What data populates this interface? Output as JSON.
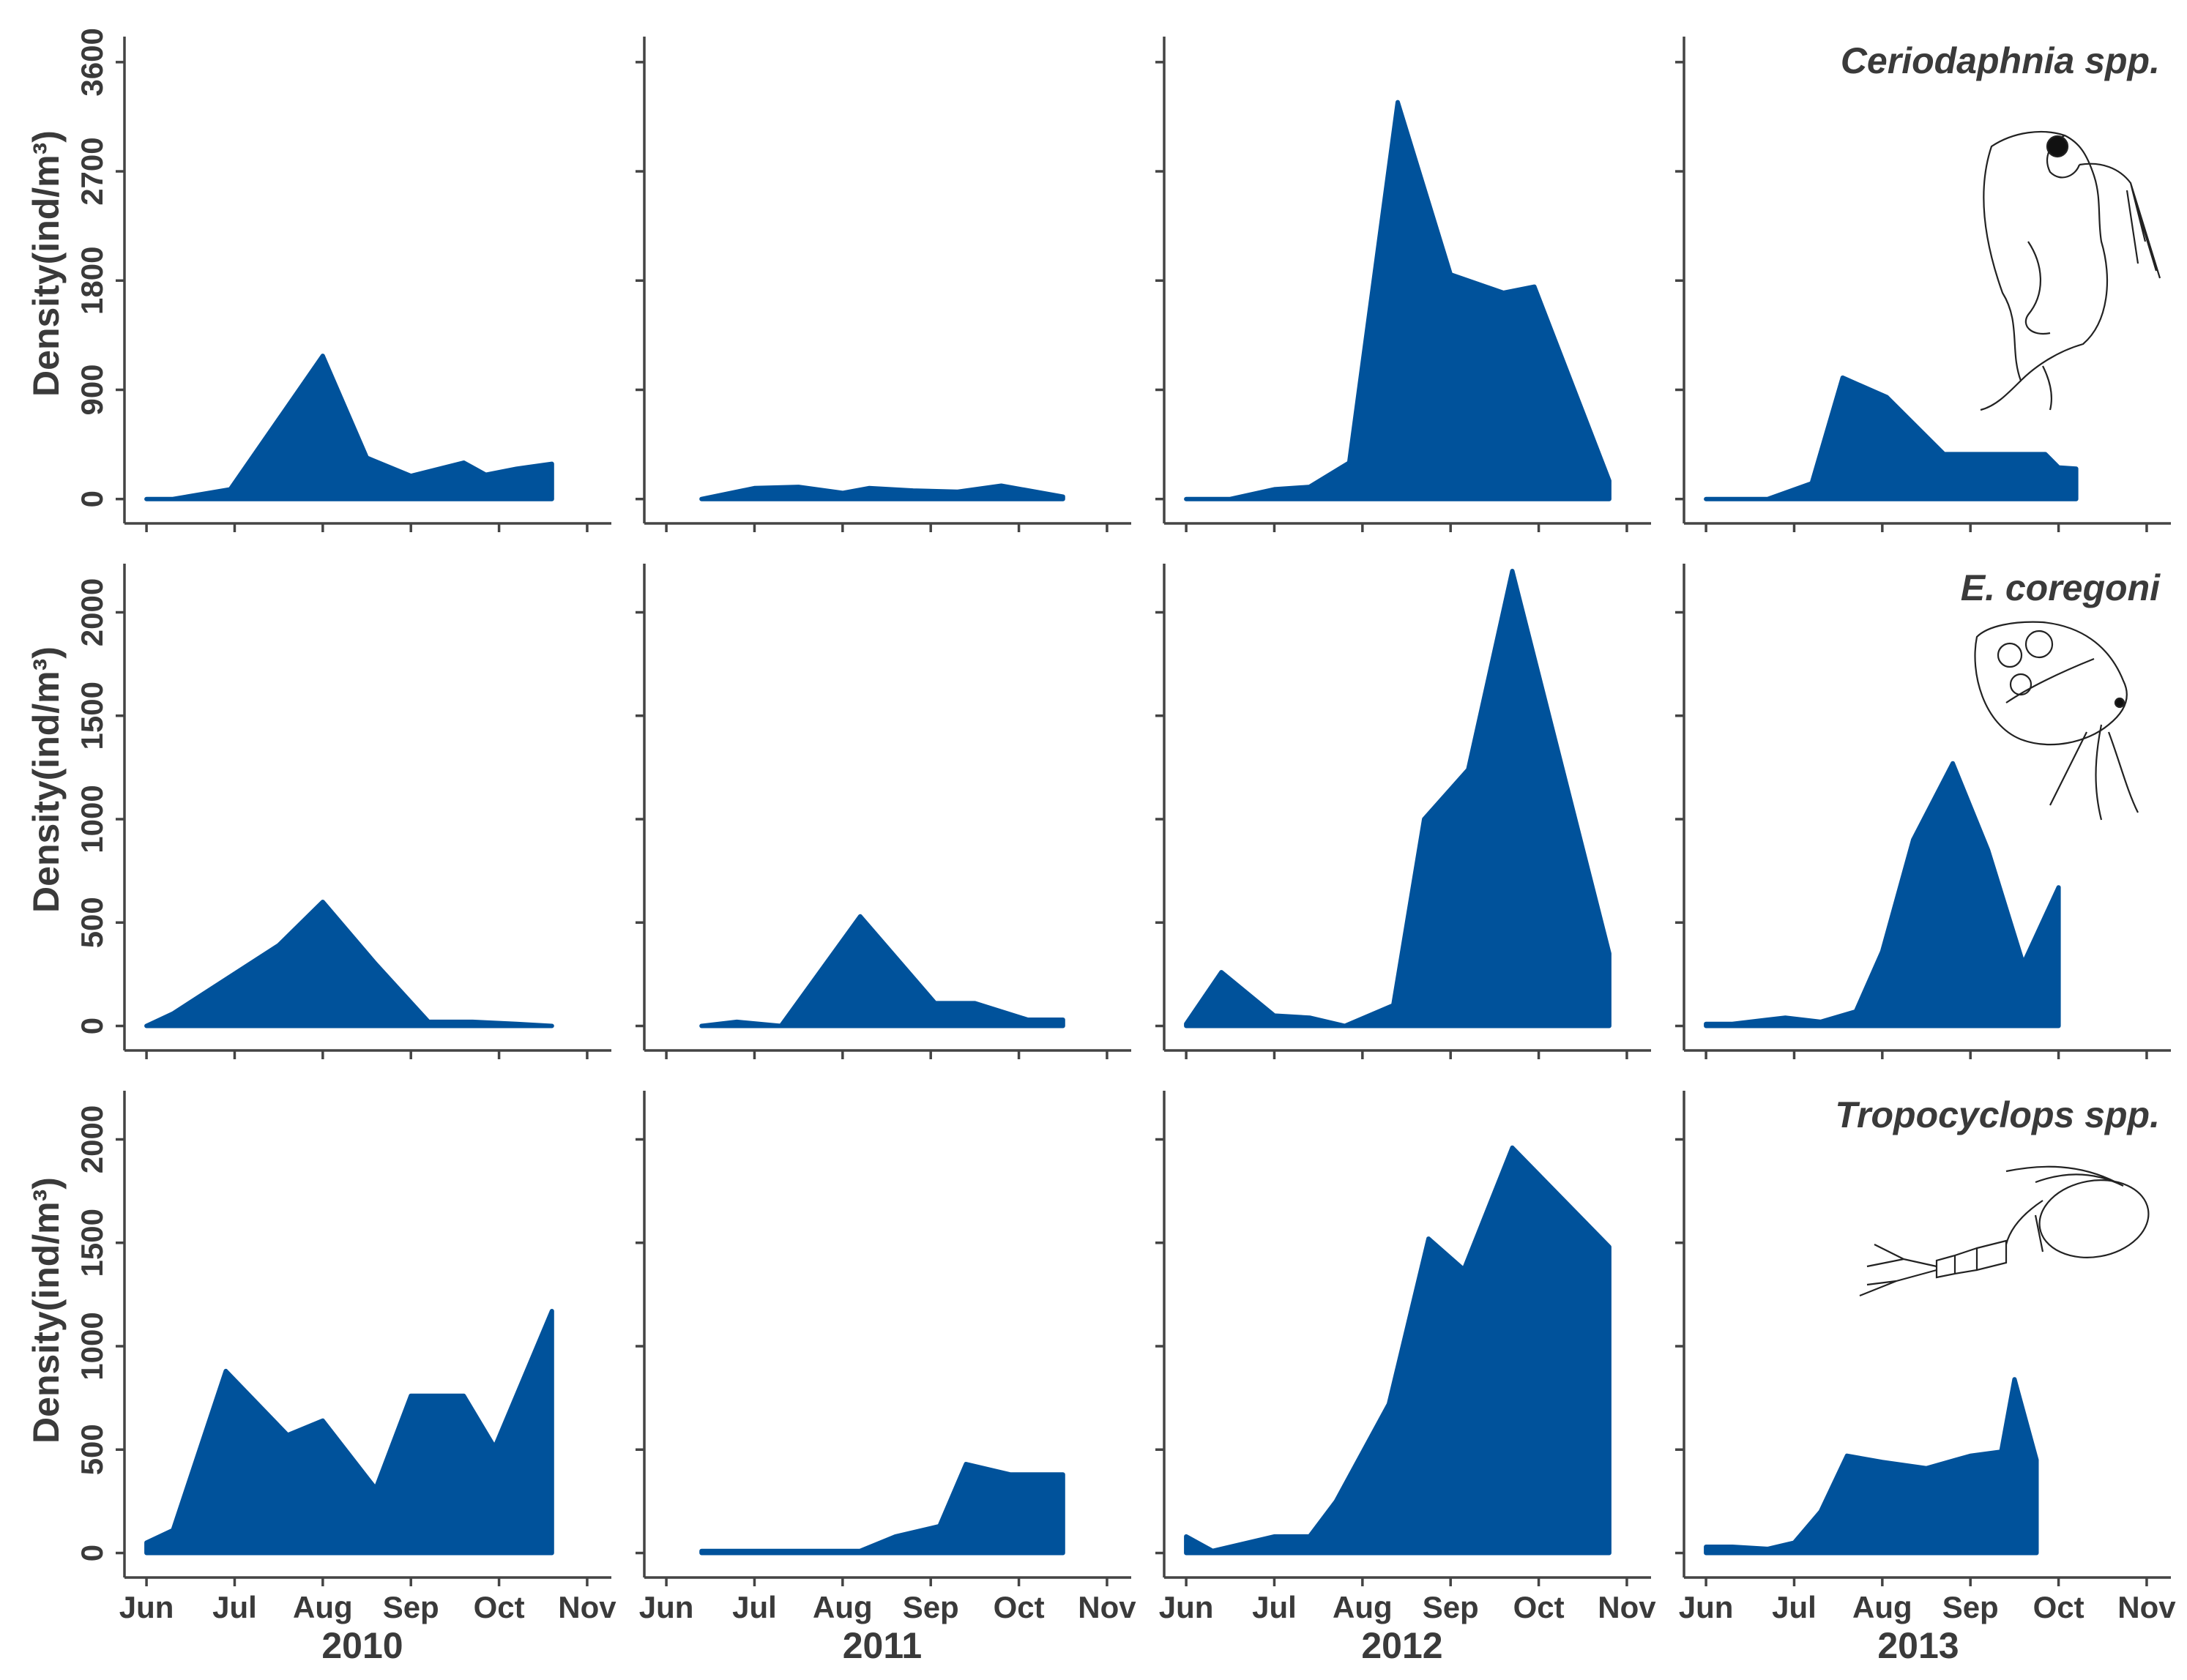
{
  "chart_data": {
    "type": "area",
    "fill_color": "#00529b",
    "years": [
      "2010",
      "2011",
      "2012",
      "2013"
    ],
    "month_labels": [
      "Jun",
      "Jul",
      "Aug",
      "Sep",
      "Oct",
      "Nov"
    ],
    "ylabel": "Density(ind/m³)",
    "rows": [
      {
        "species": "Ceriodaphnia spp.",
        "ylim": [
          -50,
          3750
        ],
        "yticks": [
          "0",
          "900",
          "1800",
          "2700",
          "3600"
        ],
        "ytick_values": [
          0,
          900,
          1800,
          2700,
          3600
        ],
        "series": [
          {
            "year": "2010",
            "x": [
              5,
              5.3,
              5.95,
              7.0,
              7.5,
              8.0,
              8.6,
              8.85,
              9.2,
              9.6
            ],
            "y": [
              0,
              0,
              80,
              1180,
              340,
              190,
              300,
              200,
              250,
              290
            ]
          },
          {
            "year": "2011",
            "x": [
              5.4,
              6.0,
              6.5,
              7.0,
              7.3,
              7.8,
              8.3,
              8.8,
              9.5
            ],
            "y": [
              0,
              90,
              100,
              50,
              90,
              70,
              60,
              110,
              20
            ]
          },
          {
            "year": "2012",
            "x": [
              5,
              5.5,
              6.0,
              6.4,
              6.85,
              7.4,
              8.0,
              8.6,
              8.95,
              9.8
            ],
            "y": [
              0,
              0,
              80,
              100,
              300,
              3270,
              1850,
              1700,
              1750,
              150
            ]
          },
          {
            "year": "2013",
            "x": [
              5,
              5.7,
              6.2,
              6.55,
              7.05,
              7.7,
              8.2,
              8.85,
              9.0,
              9.2
            ],
            "y": [
              0,
              0,
              130,
              1000,
              840,
              370,
              370,
              370,
              260,
              250
            ]
          }
        ]
      },
      {
        "species": "E. coregoni",
        "ylim": [
          -30,
          2200
        ],
        "yticks": [
          "0",
          "500",
          "1000",
          "1500",
          "2000"
        ],
        "ytick_values": [
          0,
          500,
          1000,
          1500,
          2000
        ],
        "series": [
          {
            "year": "2010",
            "x": [
              5.0,
              5.3,
              6.5,
              7.0,
              7.6,
              8.2,
              8.7,
              9.2,
              9.6
            ],
            "y": [
              0,
              60,
              390,
              600,
              300,
              20,
              20,
              10,
              0
            ]
          },
          {
            "year": "2011",
            "x": [
              5.4,
              5.8,
              6.3,
              7.2,
              8.05,
              8.5,
              9.1,
              9.5
            ],
            "y": [
              0,
              20,
              0,
              530,
              110,
              110,
              30,
              30
            ]
          },
          {
            "year": "2012",
            "x": [
              5.0,
              5.4,
              6.0,
              6.4,
              6.8,
              7.35,
              7.7,
              8.2,
              8.7,
              9.8
            ],
            "y": [
              10,
              260,
              50,
              40,
              0,
              100,
              1000,
              1240,
              2200,
              350
            ]
          },
          {
            "year": "2013",
            "x": [
              5.0,
              5.3,
              5.9,
              6.3,
              6.7,
              7.0,
              7.35,
              7.8,
              8.2,
              8.6,
              9.0
            ],
            "y": [
              10,
              10,
              40,
              20,
              70,
              360,
              900,
              1270,
              850,
              300,
              670
            ]
          }
        ]
      },
      {
        "species": "Tropocyclops spp.",
        "ylim": [
          -30,
          2200
        ],
        "yticks": [
          "0",
          "500",
          "1000",
          "1500",
          "2000"
        ],
        "ytick_values": [
          0,
          500,
          1000,
          1500,
          2000
        ],
        "series": [
          {
            "year": "2010",
            "x": [
              5.0,
              5.3,
              5.9,
              6.6,
              7.0,
              7.6,
              8.0,
              8.6,
              8.95,
              9.6
            ],
            "y": [
              50,
              110,
              880,
              570,
              640,
              310,
              760,
              760,
              510,
              1170
            ]
          },
          {
            "year": "2011",
            "x": [
              5.4,
              5.8,
              6.3,
              6.8,
              7.2,
              7.6,
              8.1,
              8.4,
              8.9,
              9.5
            ],
            "y": [
              10,
              10,
              10,
              10,
              10,
              80,
              130,
              430,
              380,
              380
            ]
          },
          {
            "year": "2012",
            "x": [
              5.0,
              5.3,
              6.0,
              6.4,
              6.7,
              7.3,
              7.75,
              8.15,
              8.7,
              9.8
            ],
            "y": [
              80,
              10,
              80,
              80,
              250,
              720,
              1520,
              1370,
              1960,
              1480
            ]
          },
          {
            "year": "2013",
            "x": [
              5.0,
              5.3,
              5.7,
              6.0,
              6.3,
              6.6,
              7.0,
              7.5,
              8.0,
              8.35,
              8.5,
              8.75
            ],
            "y": [
              30,
              30,
              20,
              50,
              200,
              470,
              440,
              410,
              470,
              490,
              840,
              450
            ]
          }
        ]
      }
    ]
  }
}
